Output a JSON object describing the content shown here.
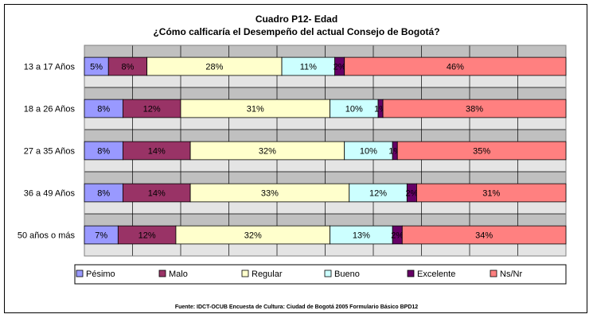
{
  "chart_data": {
    "type": "bar",
    "orientation": "horizontal",
    "stacked": true,
    "title": "Cuadro P12- Edad",
    "subtitle": "¿Cómo calficaría el Desempeño del actual Consejo de Bogotá?",
    "categories": [
      "13 a 17 Años",
      "18 a 26 Años",
      "27 a 35 Años",
      "36 a 49 Años",
      "50 años o más"
    ],
    "series": [
      {
        "name": "Pésimo",
        "color": "#9999ff",
        "values": [
          5,
          8,
          8,
          8,
          7
        ],
        "labels": [
          "5%",
          "8%",
          "8%",
          "8%",
          "7%"
        ]
      },
      {
        "name": "Malo",
        "color": "#993366",
        "values": [
          8,
          12,
          14,
          14,
          12
        ],
        "labels": [
          "8%",
          "12%",
          "14%",
          "14%",
          "12%"
        ]
      },
      {
        "name": "Regular",
        "color": "#ffffcc",
        "values": [
          28,
          31,
          32,
          33,
          32
        ],
        "labels": [
          "28%",
          "31%",
          "32%",
          "33%",
          "32%"
        ]
      },
      {
        "name": "Bueno",
        "color": "#ccffff",
        "values": [
          11,
          10,
          10,
          12,
          13
        ],
        "labels": [
          "11%",
          "10%",
          "10%",
          "12%",
          "13%"
        ]
      },
      {
        "name": "Excelente",
        "color": "#660066",
        "values": [
          2,
          1,
          1,
          2,
          2
        ],
        "labels": [
          "2%",
          "1%",
          "1%",
          "2%",
          "2%"
        ]
      },
      {
        "name": "Ns/Nr",
        "color": "#ff8080",
        "values": [
          46,
          38,
          35,
          31,
          34
        ],
        "labels": [
          "46%",
          "38%",
          "35%",
          "31%",
          "34%"
        ]
      }
    ],
    "xlim": [
      0,
      100
    ],
    "grid": true,
    "legend_position": "bottom",
    "plot_background": "#c0c0c0"
  },
  "footer": "Fuente: IDCT-OCUB Encuesta de Cultura: Ciudad de Bogotá 2005 Formulario Básico BPD12"
}
